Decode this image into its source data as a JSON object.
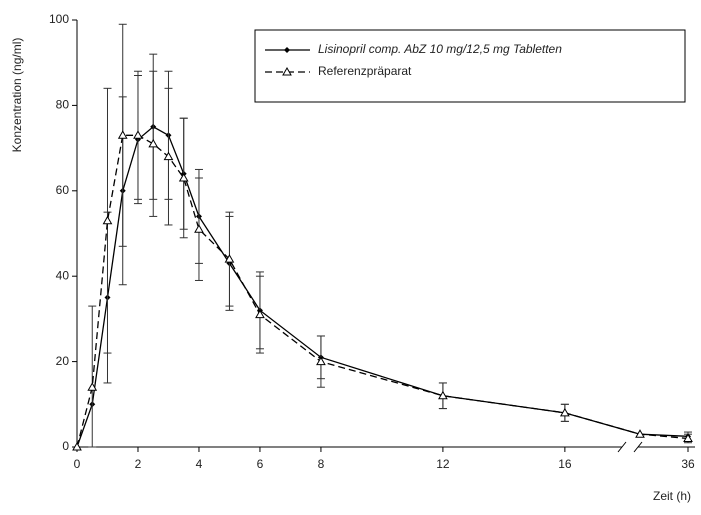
{
  "chart_data": {
    "type": "line",
    "x_label": "Zeit (h)",
    "y_label": "Konzentration (ng/ml)",
    "x": [
      0,
      0.5,
      1,
      1.5,
      2,
      2.5,
      3,
      3.5,
      4,
      5,
      6,
      8,
      12,
      16,
      24,
      36
    ],
    "series": [
      {
        "name": "Lisinopril comp. AbZ 10 mg/12,5 mg Tabletten",
        "color": "#000000",
        "dash": false,
        "marker": "diamond",
        "values": [
          0,
          10,
          35,
          60,
          72,
          75,
          73,
          64,
          54,
          43,
          32,
          21,
          12,
          8,
          3,
          2.5
        ],
        "errors": [
          0,
          0,
          20,
          22,
          15,
          17,
          15,
          13,
          11,
          11,
          9,
          5,
          3,
          2,
          0,
          1
        ]
      },
      {
        "name": "Referenzpräparat",
        "color": "#000000",
        "dash": true,
        "marker": "triangle",
        "values": [
          0,
          14,
          53,
          73,
          73,
          71,
          68,
          63,
          51,
          44,
          31,
          20,
          12,
          8,
          3,
          2
        ],
        "errors": [
          0,
          19,
          31,
          26,
          15,
          17,
          16,
          14,
          12,
          11,
          9,
          6,
          3,
          2,
          0,
          1
        ]
      }
    ],
    "xlim": [
      0,
      36
    ],
    "xbreak": [
      18.3,
      24
    ],
    "xticks": [
      0,
      2,
      4,
      6,
      8,
      12,
      16,
      36
    ],
    "ylim": [
      0,
      100
    ],
    "yticks": [
      0,
      20,
      40,
      60,
      80,
      100
    ],
    "legend": "top-right"
  }
}
